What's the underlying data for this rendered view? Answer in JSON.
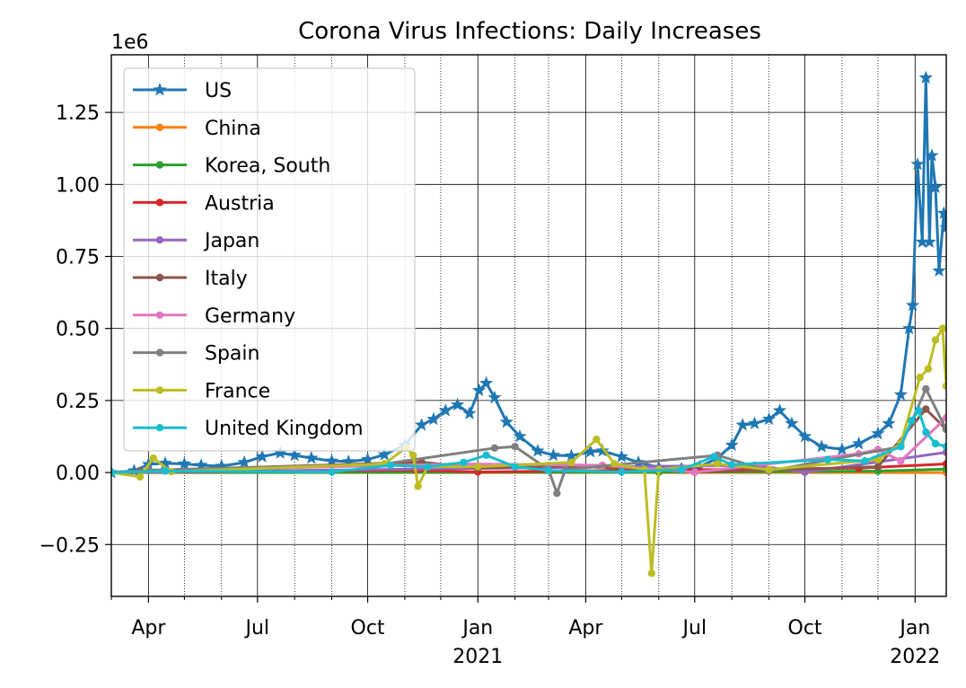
{
  "chart_data": {
    "type": "line",
    "title": "Corona Virus Infections: Daily Increases",
    "xlabel": "",
    "ylabel": "",
    "y_offset_label": "1e6",
    "x_range": [
      "2020-03-01",
      "2022-01-27"
    ],
    "ylim": [
      -0.43,
      1.45
    ],
    "y_ticks": [
      -0.25,
      0.0,
      0.25,
      0.5,
      0.75,
      1.0,
      1.25
    ],
    "y_tick_labels": [
      "−0.25",
      "0.00",
      "0.25",
      "0.50",
      "0.75",
      "1.00",
      "1.25"
    ],
    "x_ticks": [
      {
        "date": "2020-04-01",
        "label": "Apr",
        "sub": ""
      },
      {
        "date": "2020-07-01",
        "label": "Jul",
        "sub": ""
      },
      {
        "date": "2020-10-01",
        "label": "Oct",
        "sub": ""
      },
      {
        "date": "2021-01-01",
        "label": "Jan",
        "sub": "2021"
      },
      {
        "date": "2021-04-01",
        "label": "Apr",
        "sub": ""
      },
      {
        "date": "2021-07-01",
        "label": "Jul",
        "sub": ""
      },
      {
        "date": "2021-10-01",
        "label": "Oct",
        "sub": ""
      },
      {
        "date": "2022-01-01",
        "label": "Jan",
        "sub": "2022"
      }
    ],
    "grid": "major solid, minor dotted (monthly)",
    "legend_position": "upper-left",
    "series": [
      {
        "name": "US",
        "color": "#1f77b4",
        "marker": "star",
        "points": [
          [
            "2020-03-01",
            0.0
          ],
          [
            "2020-03-20",
            0.006
          ],
          [
            "2020-04-01",
            0.028
          ],
          [
            "2020-04-15",
            0.032
          ],
          [
            "2020-05-01",
            0.03
          ],
          [
            "2020-05-15",
            0.025
          ],
          [
            "2020-06-01",
            0.022
          ],
          [
            "2020-06-20",
            0.035
          ],
          [
            "2020-07-05",
            0.055
          ],
          [
            "2020-07-20",
            0.068
          ],
          [
            "2020-08-01",
            0.06
          ],
          [
            "2020-08-15",
            0.05
          ],
          [
            "2020-09-01",
            0.04
          ],
          [
            "2020-09-15",
            0.038
          ],
          [
            "2020-10-01",
            0.045
          ],
          [
            "2020-10-15",
            0.062
          ],
          [
            "2020-11-01",
            0.095
          ],
          [
            "2020-11-15",
            0.165
          ],
          [
            "2020-11-25",
            0.185
          ],
          [
            "2020-12-05",
            0.215
          ],
          [
            "2020-12-15",
            0.235
          ],
          [
            "2020-12-25",
            0.205
          ],
          [
            "2021-01-02",
            0.285
          ],
          [
            "2021-01-08",
            0.31
          ],
          [
            "2021-01-15",
            0.26
          ],
          [
            "2021-01-25",
            0.175
          ],
          [
            "2021-02-05",
            0.125
          ],
          [
            "2021-02-20",
            0.075
          ],
          [
            "2021-03-05",
            0.06
          ],
          [
            "2021-03-20",
            0.058
          ],
          [
            "2021-04-05",
            0.072
          ],
          [
            "2021-04-15",
            0.075
          ],
          [
            "2021-05-01",
            0.055
          ],
          [
            "2021-05-15",
            0.035
          ],
          [
            "2021-06-01",
            0.018
          ],
          [
            "2021-06-20",
            0.013
          ],
          [
            "2021-07-05",
            0.02
          ],
          [
            "2021-07-20",
            0.05
          ],
          [
            "2021-08-01",
            0.095
          ],
          [
            "2021-08-10",
            0.165
          ],
          [
            "2021-08-20",
            0.17
          ],
          [
            "2021-09-01",
            0.185
          ],
          [
            "2021-09-10",
            0.215
          ],
          [
            "2021-09-20",
            0.17
          ],
          [
            "2021-10-01",
            0.125
          ],
          [
            "2021-10-15",
            0.09
          ],
          [
            "2021-11-01",
            0.08
          ],
          [
            "2021-11-15",
            0.1
          ],
          [
            "2021-12-01",
            0.135
          ],
          [
            "2021-12-10",
            0.17
          ],
          [
            "2021-12-20",
            0.27
          ],
          [
            "2021-12-27",
            0.5
          ],
          [
            "2021-12-30",
            0.58
          ],
          [
            "2022-01-03",
            1.07
          ],
          [
            "2022-01-07",
            0.8
          ],
          [
            "2022-01-10",
            1.37
          ],
          [
            "2022-01-13",
            0.8
          ],
          [
            "2022-01-15",
            1.1
          ],
          [
            "2022-01-18",
            0.99
          ],
          [
            "2022-01-21",
            0.7
          ],
          [
            "2022-01-25",
            0.9
          ],
          [
            "2022-01-27",
            0.85
          ]
        ]
      },
      {
        "name": "China",
        "color": "#ff7f0e",
        "marker": "dot",
        "points": [
          [
            "2020-03-01",
            0.0
          ],
          [
            "2022-01-27",
            0.0
          ]
        ]
      },
      {
        "name": "Korea, South",
        "color": "#2ca02c",
        "marker": "dot",
        "points": [
          [
            "2020-03-01",
            0.0
          ],
          [
            "2021-06-01",
            0.001
          ],
          [
            "2021-12-01",
            0.005
          ],
          [
            "2022-01-27",
            0.012
          ]
        ]
      },
      {
        "name": "Austria",
        "color": "#d62728",
        "marker": "dot",
        "points": [
          [
            "2020-03-01",
            0.0
          ],
          [
            "2020-11-10",
            0.008
          ],
          [
            "2021-01-01",
            0.002
          ],
          [
            "2021-11-15",
            0.015
          ],
          [
            "2022-01-27",
            0.03
          ]
        ]
      },
      {
        "name": "Japan",
        "color": "#9467bd",
        "marker": "dot",
        "points": [
          [
            "2020-03-01",
            0.0
          ],
          [
            "2021-08-20",
            0.025
          ],
          [
            "2021-10-01",
            0.001
          ],
          [
            "2022-01-27",
            0.07
          ]
        ]
      },
      {
        "name": "Italy",
        "color": "#8c564b",
        "marker": "dot",
        "points": [
          [
            "2020-03-01",
            0.0
          ],
          [
            "2020-03-25",
            0.006
          ],
          [
            "2020-11-15",
            0.036
          ],
          [
            "2021-01-01",
            0.015
          ],
          [
            "2021-03-20",
            0.023
          ],
          [
            "2021-07-01",
            0.001
          ],
          [
            "2021-12-01",
            0.02
          ],
          [
            "2022-01-10",
            0.22
          ],
          [
            "2022-01-27",
            0.15
          ]
        ]
      },
      {
        "name": "Germany",
        "color": "#e377c2",
        "marker": "dot",
        "points": [
          [
            "2020-03-01",
            0.0
          ],
          [
            "2020-04-01",
            0.006
          ],
          [
            "2020-12-20",
            0.03
          ],
          [
            "2021-04-15",
            0.025
          ],
          [
            "2021-07-01",
            0.001
          ],
          [
            "2021-11-15",
            0.065
          ],
          [
            "2021-12-01",
            0.08
          ],
          [
            "2021-12-20",
            0.04
          ],
          [
            "2022-01-27",
            0.19
          ]
        ]
      },
      {
        "name": "Spain",
        "color": "#7f7f7f",
        "marker": "dot",
        "points": [
          [
            "2020-03-01",
            0.0
          ],
          [
            "2020-04-01",
            0.008
          ],
          [
            "2020-10-15",
            0.03
          ],
          [
            "2021-01-15",
            0.085
          ],
          [
            "2021-02-01",
            0.09
          ],
          [
            "2021-03-01",
            0.01
          ],
          [
            "2021-03-08",
            -0.072
          ],
          [
            "2021-03-15",
            0.01
          ],
          [
            "2021-07-20",
            0.06
          ],
          [
            "2021-09-01",
            0.005
          ],
          [
            "2021-12-20",
            0.09
          ],
          [
            "2022-01-10",
            0.29
          ],
          [
            "2022-01-27",
            0.15
          ]
        ]
      },
      {
        "name": "France",
        "color": "#bcbd22",
        "marker": "dot",
        "points": [
          [
            "2020-03-01",
            0.0
          ],
          [
            "2020-03-25",
            -0.015
          ],
          [
            "2020-04-05",
            0.05
          ],
          [
            "2020-04-20",
            0.003
          ],
          [
            "2020-10-15",
            0.03
          ],
          [
            "2020-11-02",
            0.086
          ],
          [
            "2020-11-08",
            0.06
          ],
          [
            "2020-11-12",
            -0.048
          ],
          [
            "2020-11-20",
            0.02
          ],
          [
            "2021-01-01",
            0.02
          ],
          [
            "2021-03-20",
            0.035
          ],
          [
            "2021-04-10",
            0.115
          ],
          [
            "2021-04-25",
            0.03
          ],
          [
            "2021-05-20",
            0.01
          ],
          [
            "2021-05-26",
            -0.35
          ],
          [
            "2021-06-01",
            0.01
          ],
          [
            "2021-07-20",
            0.03
          ],
          [
            "2021-09-01",
            0.01
          ],
          [
            "2021-12-01",
            0.045
          ],
          [
            "2021-12-20",
            0.1
          ],
          [
            "2022-01-05",
            0.33
          ],
          [
            "2022-01-12",
            0.36
          ],
          [
            "2022-01-18",
            0.46
          ],
          [
            "2022-01-24",
            0.5
          ],
          [
            "2022-01-27",
            0.3
          ]
        ]
      },
      {
        "name": "United Kingdom",
        "color": "#17becf",
        "marker": "dot",
        "points": [
          [
            "2020-03-01",
            0.0
          ],
          [
            "2020-04-15",
            0.005
          ],
          [
            "2020-09-01",
            0.002
          ],
          [
            "2020-10-20",
            0.025
          ],
          [
            "2020-11-20",
            0.02
          ],
          [
            "2020-12-20",
            0.035
          ],
          [
            "2021-01-08",
            0.06
          ],
          [
            "2021-02-01",
            0.02
          ],
          [
            "2021-03-01",
            0.007
          ],
          [
            "2021-05-01",
            0.002
          ],
          [
            "2021-06-20",
            0.01
          ],
          [
            "2021-07-17",
            0.055
          ],
          [
            "2021-08-01",
            0.027
          ],
          [
            "2021-10-20",
            0.045
          ],
          [
            "2021-11-20",
            0.04
          ],
          [
            "2021-12-20",
            0.09
          ],
          [
            "2021-12-29",
            0.18
          ],
          [
            "2022-01-04",
            0.215
          ],
          [
            "2022-01-10",
            0.14
          ],
          [
            "2022-01-18",
            0.1
          ],
          [
            "2022-01-27",
            0.09
          ]
        ]
      }
    ]
  }
}
